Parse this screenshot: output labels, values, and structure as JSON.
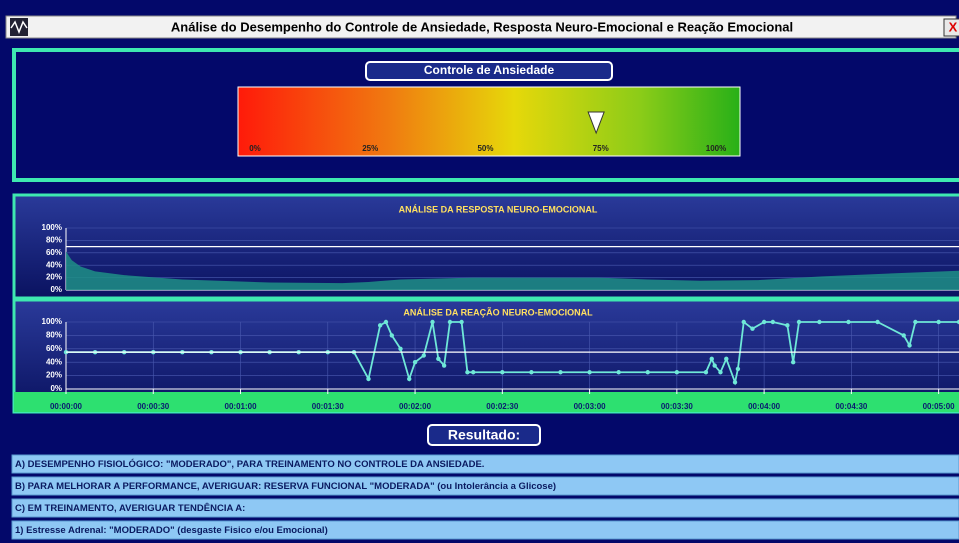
{
  "window": {
    "title": "Análise do Desempenho do Controle de Ansiedade, Resposta Neuro-Emocional e Reação Emocional",
    "close": "X"
  },
  "gauge": {
    "title": "Controle de Ansiedade",
    "value": 74,
    "ticks": [
      {
        "value": 0,
        "label": "0%"
      },
      {
        "value": 25,
        "label": "25%"
      },
      {
        "value": 50,
        "label": "50%"
      },
      {
        "value": 75,
        "label": "75%"
      },
      {
        "value": 100,
        "label": "100%"
      }
    ]
  },
  "chart_data": [
    {
      "type": "area",
      "title": "ANÁLISE DA RESPOSTA NEURO-EMOCIONAL",
      "color": "#1f8f86",
      "reference": 70,
      "grid": true,
      "x": [
        0,
        2,
        5,
        10,
        20,
        40,
        70,
        95,
        104,
        115,
        140,
        183,
        200,
        218,
        238,
        260,
        285,
        307
      ],
      "values": [
        62,
        48,
        38,
        30,
        24,
        17,
        12,
        11,
        13,
        17,
        20,
        20,
        17,
        15,
        16,
        22,
        27,
        31
      ],
      "xlim": [
        0,
        307
      ],
      "ylim": [
        0,
        100
      ],
      "yticks": [
        {
          "value": 0,
          "label": "0%"
        },
        {
          "value": 20,
          "label": "20%"
        },
        {
          "value": 40,
          "label": "40%"
        },
        {
          "value": 60,
          "label": "60%"
        },
        {
          "value": 80,
          "label": "80%"
        },
        {
          "value": 100,
          "label": "100%"
        }
      ]
    },
    {
      "type": "line",
      "title": "ANÁLISE DA REAÇÃO NEURO-EMOCIONAL",
      "color": "#6fe8d8",
      "reference": 55,
      "grid": true,
      "x": [
        0,
        10,
        20,
        30,
        40,
        50,
        60,
        70,
        80,
        90,
        99,
        104,
        108,
        110,
        112,
        115,
        118,
        120,
        123,
        126,
        128,
        130,
        132,
        136,
        138,
        140,
        150,
        160,
        170,
        180,
        190,
        200,
        210,
        220,
        222,
        223,
        225,
        227,
        230,
        231,
        233,
        236,
        240,
        243,
        248,
        250,
        252,
        259,
        269,
        279,
        288,
        290,
        292,
        300,
        307
      ],
      "values": [
        55,
        55,
        55,
        55,
        55,
        55,
        55,
        55,
        55,
        55,
        55,
        15,
        95,
        100,
        80,
        60,
        15,
        40,
        50,
        100,
        45,
        35,
        100,
        100,
        25,
        25,
        25,
        25,
        25,
        25,
        25,
        25,
        25,
        25,
        45,
        35,
        25,
        45,
        10,
        30,
        100,
        90,
        100,
        100,
        95,
        40,
        100,
        100,
        100,
        100,
        80,
        65,
        100,
        100,
        100
      ],
      "xlim": [
        0,
        307
      ],
      "ylim": [
        0,
        100
      ],
      "yticks": [
        {
          "value": 0,
          "label": "0%"
        },
        {
          "value": 20,
          "label": "20%"
        },
        {
          "value": 40,
          "label": "40%"
        },
        {
          "value": 60,
          "label": "60%"
        },
        {
          "value": 80,
          "label": "80%"
        },
        {
          "value": 100,
          "label": "100%"
        }
      ],
      "xticks": [
        {
          "value": 0,
          "label": "00:00:00"
        },
        {
          "value": 30,
          "label": "00:00:30"
        },
        {
          "value": 60,
          "label": "00:01:00"
        },
        {
          "value": 90,
          "label": "00:01:30"
        },
        {
          "value": 120,
          "label": "00:02:00"
        },
        {
          "value": 150,
          "label": "00:02:30"
        },
        {
          "value": 180,
          "label": "00:03:00"
        },
        {
          "value": 210,
          "label": "00:03:30"
        },
        {
          "value": 240,
          "label": "00:04:00"
        },
        {
          "value": 270,
          "label": "00:04:30"
        },
        {
          "value": 300,
          "label": "00:05:00"
        }
      ]
    }
  ],
  "result": {
    "title": "Resultado:",
    "rows": [
      "A) DESEMPENHO FISIOLÓGICO: \"MODERADO\", PARA TREINAMENTO NO CONTROLE DA ANSIEDADE.",
      "B) PARA MELHORAR A PERFORMANCE, AVERIGUAR: RESERVA FUNCIONAL \"MODERADA\" (ou Intolerância a Glicose)",
      "C) EM TREINAMENTO, AVERIGUAR TENDÊNCIA A:",
      "1) Estresse Adrenal: \"MODERADO\"  (desgaste Fisico e/ou Emocional)"
    ]
  }
}
